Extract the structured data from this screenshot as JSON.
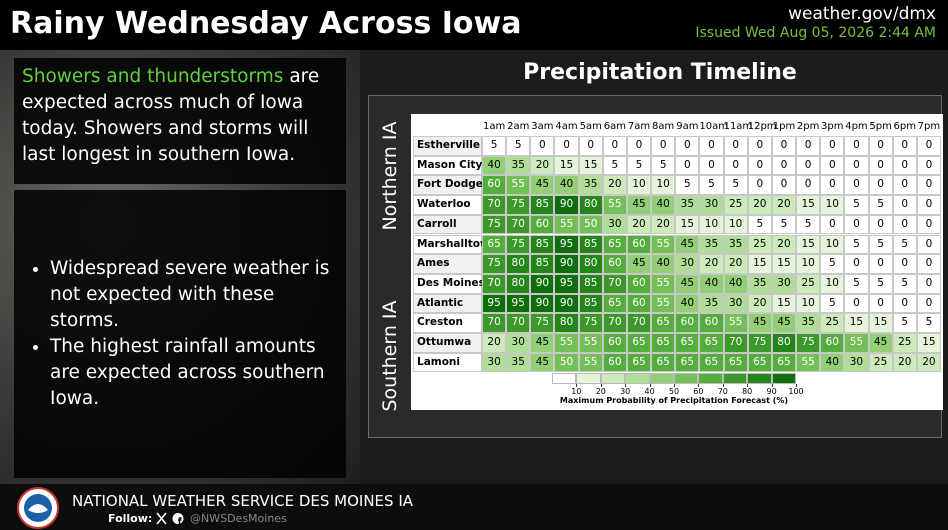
{
  "header": {
    "title": "Rainy Wednesday Across Iowa",
    "website": "weather.gov/dmx",
    "issued": "Issued Wed Aug 05, 2026 2:44 AM"
  },
  "summary": {
    "highlight": "Showers and thunderstorms",
    "text": "are expected across much of Iowa today. Showers and storms will last longest in southern Iowa."
  },
  "bullets": [
    "Widespread severe weather is not expected with these storms.",
    "The highest rainfall amounts are expected across southern Iowa."
  ],
  "timeline": {
    "title": "Precipitation Timeline",
    "regions": [
      "Northern IA",
      "Southern IA"
    ],
    "hours": [
      "1am",
      "2am",
      "3am",
      "4am",
      "5am",
      "6am",
      "7am",
      "8am",
      "9am",
      "10am",
      "11am",
      "12pm",
      "1pm",
      "2pm",
      "3pm",
      "4pm",
      "5pm",
      "6pm",
      "7pm"
    ],
    "rows": [
      {
        "name": "Estherville",
        "values": [
          5,
          5,
          0,
          0,
          0,
          0,
          0,
          0,
          0,
          0,
          0,
          0,
          0,
          0,
          0,
          0,
          0,
          0,
          0
        ]
      },
      {
        "name": "Mason City",
        "values": [
          40,
          35,
          20,
          15,
          15,
          5,
          5,
          5,
          0,
          0,
          0,
          0,
          0,
          0,
          0,
          0,
          0,
          0,
          0
        ]
      },
      {
        "name": "Fort Dodge",
        "values": [
          60,
          55,
          45,
          40,
          35,
          20,
          10,
          10,
          5,
          5,
          5,
          0,
          0,
          0,
          0,
          0,
          0,
          0,
          0
        ]
      },
      {
        "name": "Waterloo",
        "values": [
          70,
          75,
          85,
          90,
          80,
          55,
          45,
          40,
          35,
          30,
          25,
          20,
          20,
          15,
          10,
          5,
          5,
          0,
          0
        ]
      },
      {
        "name": "Carroll",
        "values": [
          75,
          70,
          60,
          55,
          50,
          30,
          20,
          20,
          15,
          10,
          10,
          5,
          5,
          5,
          0,
          0,
          0,
          0,
          0
        ]
      },
      {
        "name": "Marshalltown",
        "values": [
          65,
          75,
          85,
          95,
          85,
          65,
          60,
          55,
          45,
          35,
          35,
          25,
          20,
          15,
          10,
          5,
          5,
          5,
          0
        ]
      },
      {
        "name": "Ames",
        "values": [
          75,
          80,
          85,
          90,
          80,
          60,
          45,
          40,
          30,
          20,
          20,
          15,
          15,
          10,
          5,
          0,
          0,
          0,
          0
        ]
      },
      {
        "name": "Des Moines",
        "values": [
          70,
          80,
          90,
          95,
          85,
          70,
          60,
          55,
          45,
          40,
          40,
          35,
          30,
          25,
          10,
          5,
          5,
          5,
          0
        ]
      },
      {
        "name": "Atlantic",
        "values": [
          95,
          95,
          90,
          90,
          85,
          65,
          60,
          55,
          40,
          35,
          30,
          20,
          15,
          10,
          5,
          0,
          0,
          0,
          0
        ]
      },
      {
        "name": "Creston",
        "values": [
          70,
          70,
          75,
          80,
          75,
          70,
          70,
          65,
          60,
          60,
          55,
          45,
          45,
          35,
          25,
          15,
          15,
          5,
          5
        ]
      },
      {
        "name": "Ottumwa",
        "values": [
          20,
          30,
          45,
          55,
          55,
          60,
          65,
          65,
          65,
          65,
          70,
          75,
          80,
          75,
          60,
          55,
          45,
          25,
          15
        ]
      },
      {
        "name": "Lamoni",
        "values": [
          30,
          35,
          45,
          50,
          55,
          60,
          65,
          65,
          65,
          65,
          65,
          65,
          65,
          55,
          40,
          30,
          25,
          20,
          20
        ]
      }
    ],
    "legend": {
      "ticks": [
        10,
        20,
        30,
        40,
        50,
        60,
        70,
        80,
        90,
        100
      ],
      "label": "Maximum Probability of Precipitation Forecast (%)",
      "colors": [
        "#ffffff",
        "#e6f4dc",
        "#cdeabb",
        "#b0dd98",
        "#93cf77",
        "#74bf57",
        "#55ad3d",
        "#3b9829",
        "#24851a",
        "#0f6e0c"
      ]
    }
  },
  "footer": {
    "office": "NATIONAL WEATHER SERVICE DES MOINES IA",
    "follow": "Follow:",
    "handle": "@NWSDesMoines"
  }
}
